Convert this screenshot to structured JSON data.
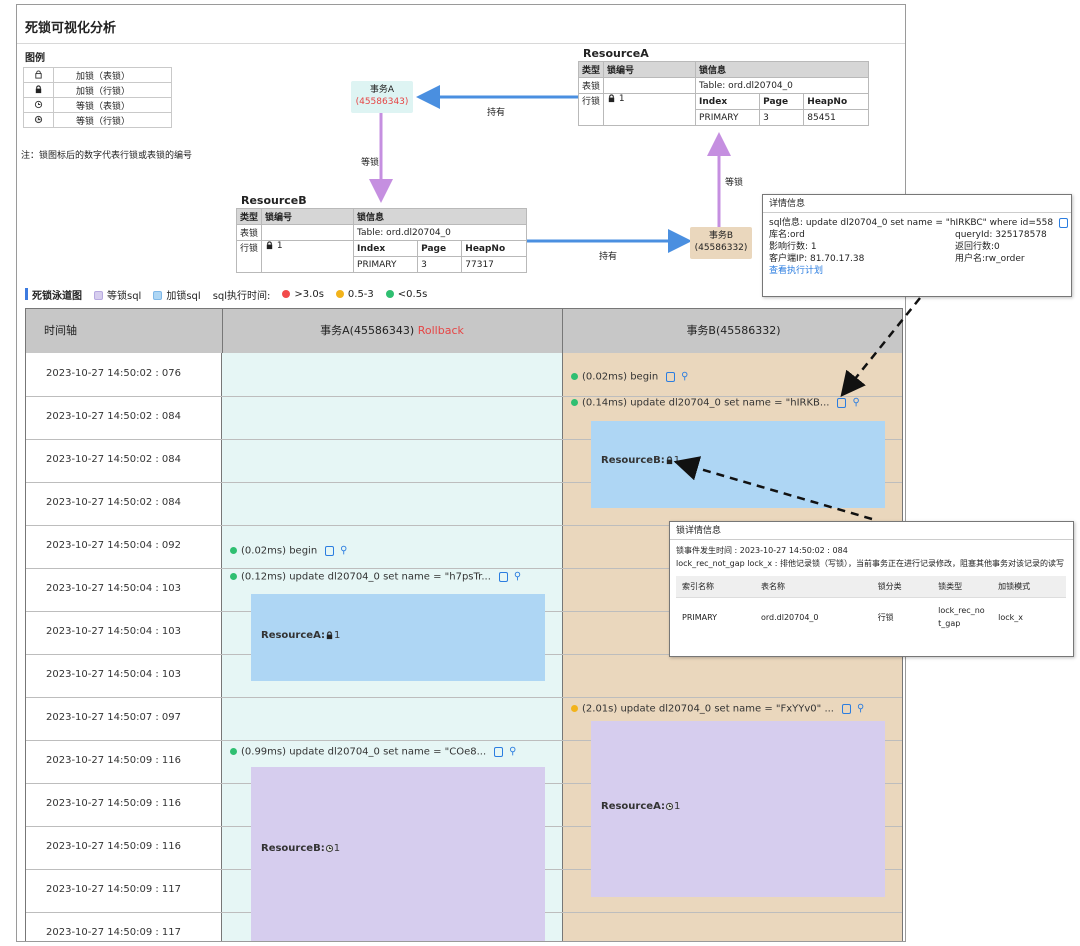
{
  "page_title": "死锁可视化分析",
  "legend": {
    "title": "图例",
    "items": [
      {
        "icon": "lock-outline-icon",
        "label": "加锁（表锁）"
      },
      {
        "icon": "lock-filled-icon",
        "label": "加锁（行锁）"
      },
      {
        "icon": "wait-lock-table-icon",
        "label": "等锁（表锁）"
      },
      {
        "icon": "wait-lock-row-icon",
        "label": "等锁（行锁）"
      }
    ],
    "note": "注：锁图标后的数字代表行锁或表锁的编号"
  },
  "graph": {
    "tx_a": {
      "name": "事务A",
      "id": "(45586343)"
    },
    "tx_b": {
      "name": "事务B",
      "id": "(45586332)"
    },
    "label_hold_a": "持有",
    "label_hold_b": "持有",
    "label_wait_a": "等锁",
    "label_wait_b": "等锁",
    "resource_a": {
      "name": "ResourceA",
      "headers": [
        "类型",
        "锁编号",
        "锁信息"
      ],
      "table_row": {
        "type": "表锁",
        "info": "Table: ord.dl20704_0"
      },
      "row_lock": {
        "type": "行锁",
        "num": "1"
      },
      "sub_headers": [
        "Index",
        "Page",
        "HeapNo"
      ],
      "sub_values": [
        "PRIMARY",
        "3",
        "85451"
      ]
    },
    "resource_b": {
      "name": "ResourceB",
      "headers": [
        "类型",
        "锁编号",
        "锁信息"
      ],
      "table_row": {
        "type": "表锁",
        "info": "Table: ord.dl20704_0"
      },
      "row_lock": {
        "type": "行锁",
        "num": "1"
      },
      "sub_headers": [
        "Index",
        "Page",
        "HeapNo"
      ],
      "sub_values": [
        "PRIMARY",
        "3",
        "77317"
      ]
    }
  },
  "timeline_legend": {
    "title": "死锁泳道图",
    "wait": "等锁sql",
    "lock": "加锁sql",
    "exec_time_label": "sql执行时间:",
    "t1": ">3.0s",
    "t2": "0.5-3",
    "t3": "<0.5s",
    "colors": {
      "red": "#f24b4b",
      "orange": "#f2b31b",
      "green": "#2fbf71",
      "wait": "#d6cdee",
      "lock": "#aed6f4"
    }
  },
  "timeline": {
    "headers": {
      "axis": "时间轴",
      "a": "事务A(45586343)",
      "a_status": "Rollback",
      "b": "事务B(45586332)"
    },
    "rows": [
      "2023-10-27 14:50:02 : 076",
      "2023-10-27 14:50:02 : 084",
      "2023-10-27 14:50:02 : 084",
      "2023-10-27 14:50:02 : 084",
      "2023-10-27 14:50:04 : 092",
      "2023-10-27 14:50:04 : 103",
      "2023-10-27 14:50:04 : 103",
      "2023-10-27 14:50:04 : 103",
      "2023-10-27 14:50:07 : 097",
      "2023-10-27 14:50:09 : 116",
      "2023-10-27 14:50:09 : 116",
      "2023-10-27 14:50:09 : 116",
      "2023-10-27 14:50:09 : 117",
      "2023-10-27 14:50:09 : 117"
    ],
    "b_begin": "(0.02ms) begin",
    "b_update1": "(0.14ms) update dl20704_0 set name = \"hIRKB...",
    "b_block1": "ResourceB:",
    "b_block1_num": "1",
    "a_begin": "(0.02ms) begin",
    "a_update1": "(0.12ms) update dl20704_0 set name = \"h7psTr...",
    "a_block1": "ResourceA:",
    "a_block1_num": "1",
    "b_update2": "(2.01s) update dl20704_0 set name = \"FxYYv0\" ...",
    "b_block2": "ResourceA:",
    "b_block2_num": "1",
    "a_update2": "(0.99ms) update dl20704_0 set name = \"COe8...",
    "a_block2": "ResourceB:",
    "a_block2_num": "1"
  },
  "detail_popup": {
    "title": "详情信息",
    "sql_label": "sql信息:",
    "sql_value": "update dl20704_0 set name = \"hIRKBC\" where id=558",
    "db": "库名:ord",
    "query_id": "queryId: 325178578",
    "affected": "影响行数: 1",
    "returned": "返回行数:0",
    "client_ip": "客户端IP: 81.70.17.38",
    "user": "用户名:rw_order",
    "plan_link": "查看执行计划"
  },
  "lock_popup": {
    "title": "锁详情信息",
    "time": "锁事件发生时间 : 2023-10-27 14:50:02 : 084",
    "desc": "lock_rec_not_gap lock_x : 排他记录锁（写锁），当前事务正在进行记录修改，阻塞其他事务对该记录的读写",
    "headers": [
      "索引名称",
      "表名称",
      "锁分类",
      "锁类型",
      "加锁模式"
    ],
    "row": [
      "PRIMARY",
      "ord.dl20704_0",
      "行锁",
      "lock_rec_not_gap",
      "lock_x"
    ]
  }
}
